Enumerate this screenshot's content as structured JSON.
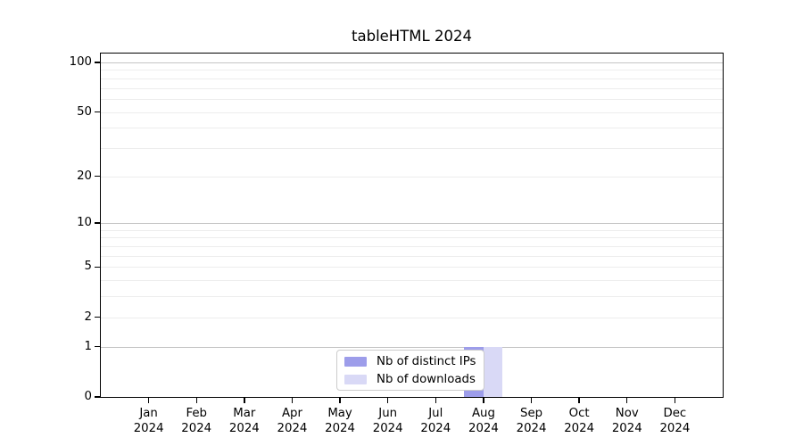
{
  "chart_data": {
    "type": "bar",
    "title": "tableHTML 2024",
    "x_axis": {
      "categories": [
        {
          "month": "Jan",
          "year": "2024"
        },
        {
          "month": "Feb",
          "year": "2024"
        },
        {
          "month": "Mar",
          "year": "2024"
        },
        {
          "month": "Apr",
          "year": "2024"
        },
        {
          "month": "May",
          "year": "2024"
        },
        {
          "month": "Jun",
          "year": "2024"
        },
        {
          "month": "Jul",
          "year": "2024"
        },
        {
          "month": "Aug",
          "year": "2024"
        },
        {
          "month": "Sep",
          "year": "2024"
        },
        {
          "month": "Oct",
          "year": "2024"
        },
        {
          "month": "Nov",
          "year": "2024"
        },
        {
          "month": "Dec",
          "year": "2024"
        }
      ]
    },
    "y_axis": {
      "scale": "log1p",
      "ylim": [
        0,
        110
      ],
      "tick_labels": [
        "100",
        "50",
        "20",
        "10",
        "5",
        "2",
        "1",
        "0"
      ],
      "tick_values": [
        100,
        50,
        20,
        10,
        5,
        2,
        1,
        0
      ],
      "minor_gridlines": [
        2,
        3,
        4,
        5,
        6,
        7,
        8,
        9,
        20,
        30,
        40,
        50,
        60,
        70,
        80,
        90
      ],
      "major_gridlines": [
        1,
        10,
        100
      ]
    },
    "series": [
      {
        "name": "Nb of distinct IPs",
        "color": "#9d9dea",
        "values": [
          0,
          0,
          0,
          0,
          0,
          0,
          0,
          1,
          0,
          0,
          0,
          0
        ]
      },
      {
        "name": "Nb of downloads",
        "color": "#d9d9f6",
        "values": [
          0,
          0,
          0,
          0,
          0,
          0,
          0,
          1,
          0,
          0,
          0,
          0
        ]
      }
    ],
    "legend": {
      "position": "lower center",
      "items": [
        {
          "label": "Nb of distinct IPs",
          "color": "#9d9dea"
        },
        {
          "label": "Nb of downloads",
          "color": "#d9d9f6"
        }
      ]
    },
    "grid": true
  }
}
